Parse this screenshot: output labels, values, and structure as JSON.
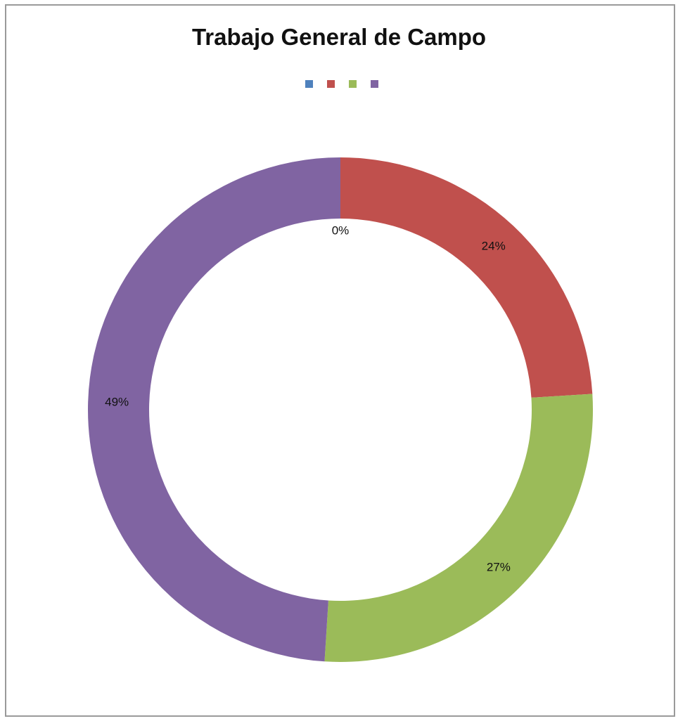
{
  "chart_data": {
    "type": "pie",
    "variant": "doughnut",
    "title": "Trabajo General de Campo",
    "legend_position": "top",
    "slices": [
      {
        "value": 0,
        "label": "0%",
        "color": "#4f81bd"
      },
      {
        "value": 24,
        "label": "24%",
        "color": "#c0504d"
      },
      {
        "value": 27,
        "label": "27%",
        "color": "#9bbb59"
      },
      {
        "value": 49,
        "label": "49%",
        "color": "#8064a2"
      }
    ]
  }
}
